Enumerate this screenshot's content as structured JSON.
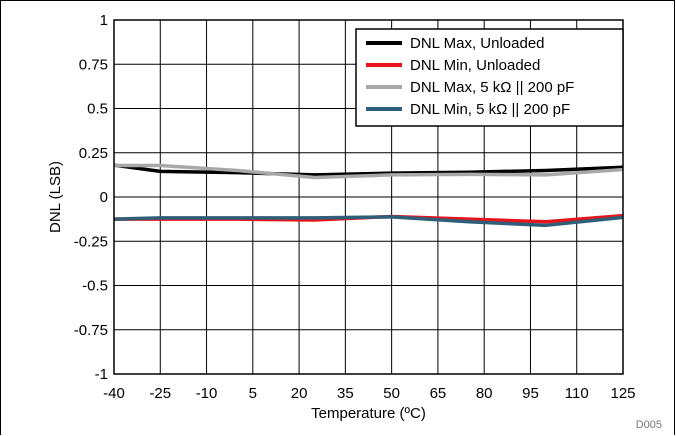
{
  "chart_data": {
    "type": "line",
    "title": "",
    "xlabel": "Temperature (ºC)",
    "ylabel": "DNL (LSB)",
    "xlim": [
      -40,
      125
    ],
    "ylim": [
      -1,
      1
    ],
    "x_ticks": [
      -40,
      -25,
      -10,
      5,
      20,
      35,
      50,
      65,
      80,
      95,
      110,
      125
    ],
    "x_tick_labels": [
      "-40",
      "-25",
      "-10",
      "5",
      "20",
      "35",
      "50",
      "65",
      "80",
      "95",
      "110",
      "125"
    ],
    "y_ticks": [
      -1,
      -0.75,
      -0.5,
      -0.25,
      0,
      0.25,
      0.5,
      0.75,
      1
    ],
    "y_tick_labels": [
      "-1",
      "-0.75",
      "-0.5",
      "-0.25",
      "0",
      "0.25",
      "0.5",
      "0.75",
      "1"
    ],
    "grid": true,
    "legend_position": "top-right",
    "series": [
      {
        "name": "DNL Max, Unloaded",
        "color": "#000000",
        "x": [
          -40,
          -25,
          0,
          25,
          50,
          75,
          100,
          125
        ],
        "y": [
          0.18,
          0.145,
          0.138,
          0.125,
          0.135,
          0.14,
          0.15,
          0.168
        ]
      },
      {
        "name": "DNL Min, Unloaded",
        "color": "#e8141c",
        "x": [
          -40,
          -25,
          0,
          25,
          50,
          75,
          100,
          125
        ],
        "y": [
          -0.125,
          -0.125,
          -0.125,
          -0.13,
          -0.11,
          -0.125,
          -0.14,
          -0.105
        ]
      },
      {
        "name": "DNL Max, 5 kΩ || 200 pF",
        "color": "#a8a8a8",
        "x": [
          -40,
          -25,
          0,
          25,
          50,
          75,
          100,
          125
        ],
        "y": [
          0.178,
          0.178,
          0.15,
          0.11,
          0.125,
          0.128,
          0.125,
          0.155
        ]
      },
      {
        "name": "DNL Min, 5 kΩ || 200 pF",
        "color": "#2f5e78",
        "x": [
          -40,
          -25,
          0,
          25,
          50,
          75,
          100,
          125
        ],
        "y": [
          -0.125,
          -0.118,
          -0.118,
          -0.118,
          -0.112,
          -0.14,
          -0.16,
          -0.115
        ]
      }
    ],
    "footnote": "D005"
  }
}
